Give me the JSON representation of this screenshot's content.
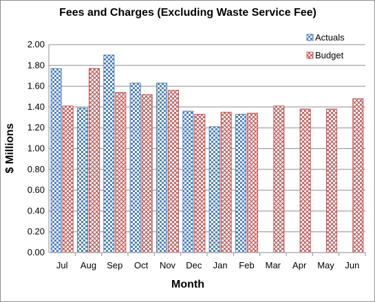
{
  "chart_data": {
    "type": "bar",
    "title": "Fees and Charges (Excluding  Waste Service Fee)",
    "xlabel": "Month",
    "ylabel": "$ Millions",
    "ylim": [
      0,
      2.0
    ],
    "yticks": [
      "0.00",
      "0.20",
      "0.40",
      "0.60",
      "0.80",
      "1.00",
      "1.20",
      "1.40",
      "1.60",
      "1.80",
      "2.00"
    ],
    "categories": [
      "Jul",
      "Aug",
      "Sep",
      "Oct",
      "Nov",
      "Dec",
      "Jan",
      "Feb",
      "Mar",
      "Apr",
      "May",
      "Jun"
    ],
    "grid": "horizontal",
    "legend_position": "top-right",
    "series": [
      {
        "name": "Actuals",
        "color": "#4f81bd",
        "pattern": "checkerboard",
        "values": [
          1.77,
          1.39,
          1.9,
          1.63,
          1.63,
          1.36,
          1.21,
          1.33,
          null,
          null,
          null,
          null
        ]
      },
      {
        "name": "Budget",
        "color": "#c0504d",
        "pattern": "weave",
        "values": [
          1.41,
          1.77,
          1.54,
          1.52,
          1.56,
          1.33,
          1.35,
          1.34,
          1.41,
          1.38,
          1.38,
          1.48
        ]
      }
    ]
  }
}
